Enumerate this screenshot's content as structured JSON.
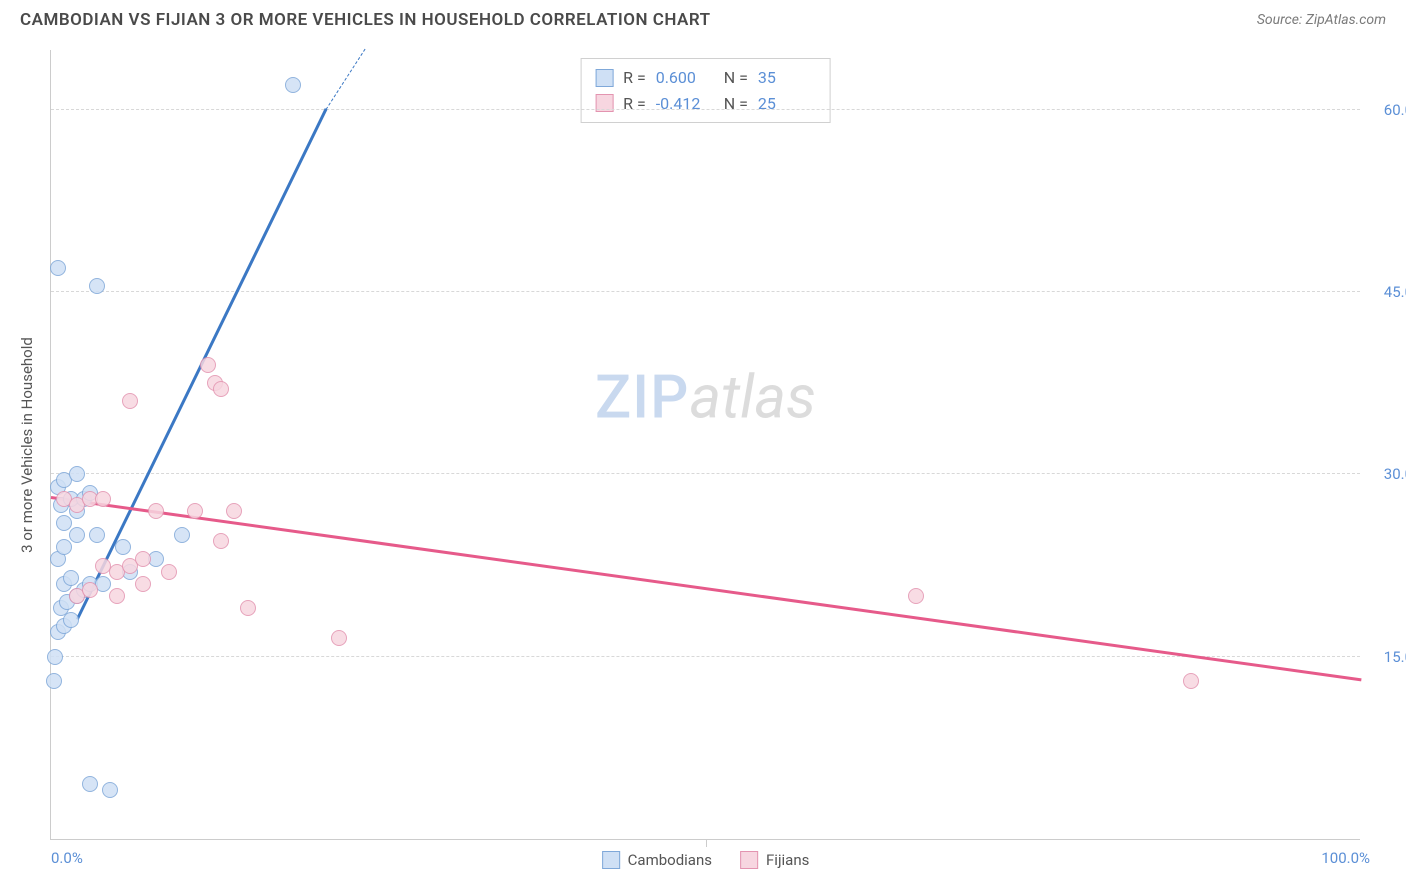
{
  "title": "CAMBODIAN VS FIJIAN 3 OR MORE VEHICLES IN HOUSEHOLD CORRELATION CHART",
  "source": "Source: ZipAtlas.com",
  "chart": {
    "type": "scatter",
    "y_axis_label": "3 or more Vehicles in Household",
    "xlim": [
      0,
      100
    ],
    "ylim": [
      0,
      65
    ],
    "x_ticks": [
      {
        "pos": 0,
        "label": "0.0%"
      },
      {
        "pos": 50,
        "label": ""
      },
      {
        "pos": 100,
        "label": "100.0%"
      }
    ],
    "y_ticks": [
      {
        "pos": 15,
        "label": "15.0%"
      },
      {
        "pos": 30,
        "label": "30.0%"
      },
      {
        "pos": 45,
        "label": "45.0%"
      },
      {
        "pos": 60,
        "label": "60.0%"
      }
    ],
    "background_color": "#ffffff",
    "grid_color": "#d8d8d8",
    "axis_color": "#cccccc",
    "tick_label_color": "#5b8fd6",
    "point_radius": 8,
    "series": [
      {
        "name": "Cambodians",
        "fill": "#cfe0f5",
        "stroke": "#7fa8d9",
        "line_color": "#3b78c4",
        "r_value": "0.600",
        "n_value": "35",
        "trend": {
          "x1": 2,
          "y1": 18,
          "x2": 21,
          "y2": 60
        },
        "dashed_ext": {
          "x1": 21,
          "y1": 60,
          "x2": 24,
          "y2": 65
        },
        "points": [
          [
            0.5,
            47
          ],
          [
            3.5,
            45.5
          ],
          [
            18.5,
            62
          ],
          [
            0.3,
            15
          ],
          [
            0.2,
            13
          ],
          [
            3,
            4.5
          ],
          [
            4.5,
            4
          ],
          [
            0.5,
            17
          ],
          [
            1,
            17.5
          ],
          [
            1.5,
            18
          ],
          [
            0.8,
            19
          ],
          [
            1.2,
            19.5
          ],
          [
            2,
            20
          ],
          [
            2.5,
            20.5
          ],
          [
            1,
            21
          ],
          [
            1.5,
            21.5
          ],
          [
            3,
            21
          ],
          [
            4,
            21
          ],
          [
            0.5,
            23
          ],
          [
            1,
            24
          ],
          [
            2,
            25
          ],
          [
            3.5,
            25
          ],
          [
            10,
            25
          ],
          [
            1,
            26
          ],
          [
            2,
            27
          ],
          [
            0.8,
            27.5
          ],
          [
            1.5,
            28
          ],
          [
            2.5,
            28
          ],
          [
            3,
            28.5
          ],
          [
            0.5,
            29
          ],
          [
            1,
            29.5
          ],
          [
            2,
            30
          ],
          [
            5.5,
            24
          ],
          [
            6,
            22
          ],
          [
            8,
            23
          ]
        ]
      },
      {
        "name": "Fijians",
        "fill": "#f7d6e0",
        "stroke": "#e394b0",
        "line_color": "#e65a8a",
        "r_value": "-0.412",
        "n_value": "25",
        "trend": {
          "x1": 0,
          "y1": 28,
          "x2": 100,
          "y2": 13
        },
        "points": [
          [
            12,
            39
          ],
          [
            12.5,
            37.5
          ],
          [
            13,
            37
          ],
          [
            6,
            36
          ],
          [
            1,
            28
          ],
          [
            2,
            27.5
          ],
          [
            3,
            28
          ],
          [
            4,
            28
          ],
          [
            8,
            27
          ],
          [
            11,
            27
          ],
          [
            14,
            27
          ],
          [
            4,
            22.5
          ],
          [
            5,
            22
          ],
          [
            6,
            22.5
          ],
          [
            7,
            23
          ],
          [
            9,
            22
          ],
          [
            13,
            24.5
          ],
          [
            2,
            20
          ],
          [
            3,
            20.5
          ],
          [
            5,
            20
          ],
          [
            7,
            21
          ],
          [
            15,
            19
          ],
          [
            22,
            16.5
          ],
          [
            66,
            20
          ],
          [
            87,
            13
          ]
        ]
      }
    ],
    "bottom_legend": [
      {
        "label": "Cambodians",
        "fill": "#cfe0f5",
        "stroke": "#7fa8d9"
      },
      {
        "label": "Fijians",
        "fill": "#f7d6e0",
        "stroke": "#e394b0"
      }
    ]
  },
  "watermark": {
    "part1": "ZIP",
    "part2": "atlas"
  }
}
